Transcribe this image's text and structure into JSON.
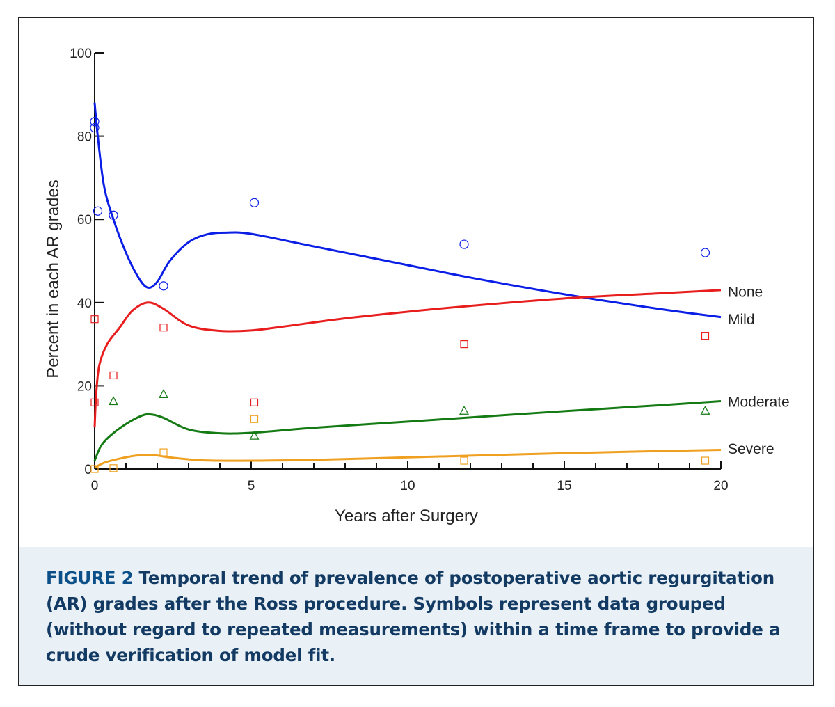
{
  "figure": {
    "label": "FIGURE 2",
    "caption": "Temporal trend of prevalence of postoperative aortic regurgitation (AR) grades after the Ross procedure. Symbols represent data grouped (without regard to repeated measurements) within a time frame to provide a crude verification of model fit."
  },
  "chart_data": {
    "type": "line",
    "title": "",
    "xlabel": "Years after Surgery",
    "ylabel": "Percent in each AR grades",
    "xlim": [
      0,
      20
    ],
    "ylim": [
      0,
      100
    ],
    "x_ticks": [
      0,
      5,
      10,
      15,
      20
    ],
    "y_ticks": [
      0,
      20,
      40,
      60,
      80,
      100
    ],
    "grid": false,
    "series": [
      {
        "name": "None",
        "color": "#0a1ee6",
        "marker": "circle",
        "curve": [
          [
            0,
            88
          ],
          [
            0.1,
            80
          ],
          [
            0.3,
            68
          ],
          [
            0.6,
            60
          ],
          [
            1.0,
            52
          ],
          [
            1.4,
            46
          ],
          [
            1.7,
            43.6
          ],
          [
            2.0,
            45
          ],
          [
            2.4,
            50
          ],
          [
            3.0,
            54.5
          ],
          [
            3.6,
            56.4
          ],
          [
            4.2,
            56.8
          ],
          [
            5.0,
            56.5
          ],
          [
            7.0,
            53.5
          ],
          [
            10.0,
            49
          ],
          [
            12.0,
            46
          ],
          [
            15.0,
            42
          ],
          [
            18.0,
            38.5
          ],
          [
            20.0,
            36.5
          ]
        ],
        "points": [
          [
            0,
            83.5
          ],
          [
            0,
            82
          ],
          [
            0.1,
            62
          ],
          [
            0.6,
            61
          ],
          [
            2.2,
            44
          ],
          [
            5.1,
            64
          ],
          [
            11.8,
            54
          ],
          [
            19.5,
            52
          ]
        ]
      },
      {
        "name": "Mild",
        "color": "#e81e1e",
        "marker": "square",
        "curve": [
          [
            0,
            10
          ],
          [
            0.05,
            18
          ],
          [
            0.15,
            25
          ],
          [
            0.4,
            30
          ],
          [
            0.8,
            34
          ],
          [
            1.2,
            38
          ],
          [
            1.7,
            40
          ],
          [
            2.2,
            38.5
          ],
          [
            3.0,
            34.5
          ],
          [
            4.0,
            33.2
          ],
          [
            5.0,
            33.3
          ],
          [
            6.0,
            34.2
          ],
          [
            8.0,
            36.2
          ],
          [
            10.0,
            37.8
          ],
          [
            12.0,
            39.2
          ],
          [
            15.0,
            41
          ],
          [
            18.0,
            42.2
          ],
          [
            20.0,
            43
          ]
        ],
        "points": [
          [
            0,
            36
          ],
          [
            0,
            16
          ],
          [
            0.6,
            22.5
          ],
          [
            2.2,
            34
          ],
          [
            5.1,
            16
          ],
          [
            11.8,
            30
          ],
          [
            19.5,
            32
          ]
        ]
      },
      {
        "name": "Moderate",
        "color": "#147a14",
        "marker": "triangle",
        "curve": [
          [
            0,
            2
          ],
          [
            0.2,
            5.5
          ],
          [
            0.5,
            8
          ],
          [
            1.0,
            10.8
          ],
          [
            1.5,
            12.8
          ],
          [
            1.8,
            13.1
          ],
          [
            2.2,
            12.3
          ],
          [
            3.0,
            9.5
          ],
          [
            4.0,
            8.6
          ],
          [
            5.0,
            8.7
          ],
          [
            7.0,
            9.9
          ],
          [
            10.0,
            11.4
          ],
          [
            12.0,
            12.4
          ],
          [
            15.0,
            13.9
          ],
          [
            18.0,
            15.3
          ],
          [
            20.0,
            16.3
          ]
        ],
        "points": [
          [
            0.6,
            16.3
          ],
          [
            2.2,
            18
          ],
          [
            5.1,
            8
          ],
          [
            11.8,
            14
          ],
          [
            19.5,
            14
          ]
        ]
      },
      {
        "name": "Severe",
        "color": "#f0a020",
        "marker": "square",
        "curve": [
          [
            0,
            0.3
          ],
          [
            0.3,
            1.5
          ],
          [
            0.8,
            2.5
          ],
          [
            1.3,
            3.2
          ],
          [
            1.8,
            3.4
          ],
          [
            2.4,
            2.8
          ],
          [
            3.2,
            2.2
          ],
          [
            4.0,
            2.0
          ],
          [
            5.0,
            2.0
          ],
          [
            7.0,
            2.2
          ],
          [
            10.0,
            2.8
          ],
          [
            12.0,
            3.2
          ],
          [
            15.0,
            3.8
          ],
          [
            18.0,
            4.3
          ],
          [
            20.0,
            4.6
          ]
        ],
        "points": [
          [
            0,
            0
          ],
          [
            0.6,
            0.2
          ],
          [
            2.2,
            4
          ],
          [
            5.1,
            12
          ],
          [
            11.8,
            2
          ],
          [
            19.5,
            2
          ]
        ]
      }
    ],
    "series_label_anchors": {
      "None": 42.7,
      "Mild": 36.1,
      "Moderate": 16.3,
      "Severe": 5.0
    }
  }
}
